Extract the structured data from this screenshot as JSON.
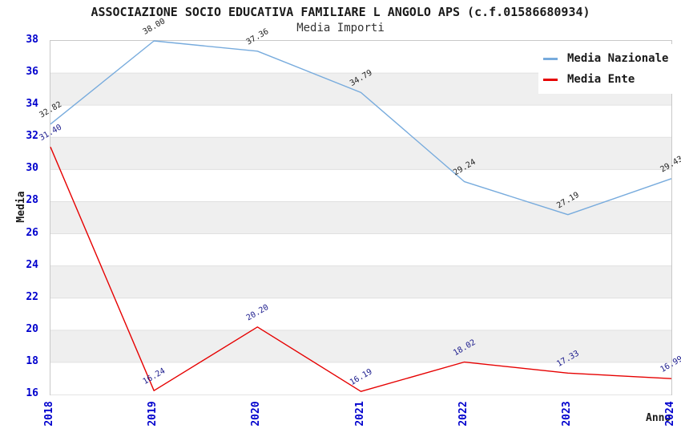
{
  "title": "ASSOCIAZIONE SOCIO EDUCATIVA FAMILIARE L ANGOLO APS (c.f.01586680934)",
  "subtitle": "Media Importi",
  "chart_data": {
    "type": "line",
    "x": [
      "2018",
      "2019",
      "2020",
      "2021",
      "2022",
      "2023",
      "2024"
    ],
    "series": [
      {
        "name": "Media Nazionale",
        "color": "#77abdd",
        "label_color": "#222222",
        "values": [
          32.82,
          38.0,
          37.36,
          34.79,
          29.24,
          27.19,
          29.43
        ]
      },
      {
        "name": "Media Ente",
        "color": "#e60000",
        "label_color": "#1a1a8c",
        "values": [
          31.4,
          16.24,
          20.2,
          16.19,
          18.02,
          17.33,
          16.99
        ]
      }
    ],
    "xlabel": "Anno",
    "ylabel": "Media",
    "ylim": [
      16,
      38
    ],
    "ytick_step": 2,
    "grid": true,
    "legend_position": "top-right",
    "band_colors": [
      "#ffffff",
      "#efefef"
    ],
    "grid_color": "#e0e0e0",
    "tick_label_color": "#0000cd"
  }
}
